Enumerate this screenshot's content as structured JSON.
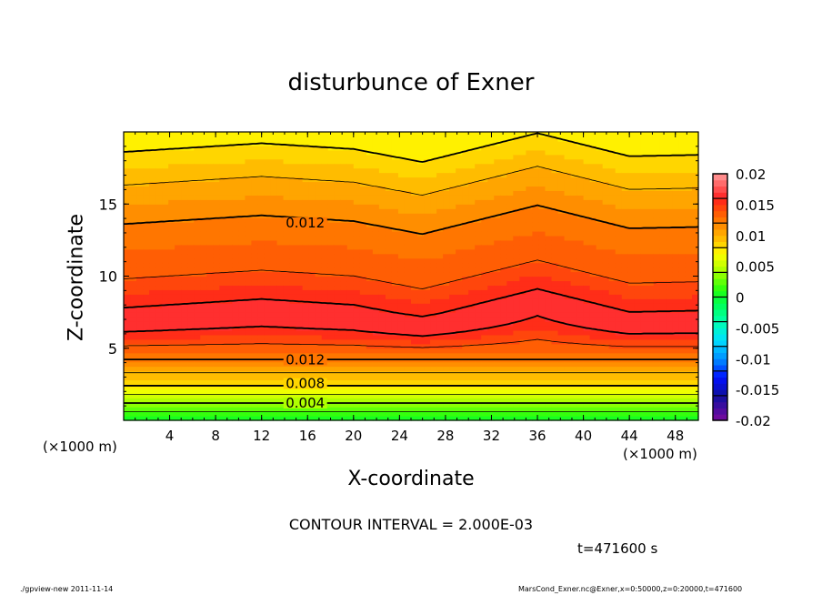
{
  "chart_data": {
    "type": "heatmap",
    "subtype": "filled-contour",
    "title": "disturbunce of Exner",
    "xlabel": "X-coordinate",
    "ylabel": "Z-coordinate",
    "x_unit_left": "(×1000 m)",
    "x_unit_right": "(×1000 m)",
    "xlim": [
      0,
      50
    ],
    "ylim": [
      0,
      20
    ],
    "xticks": [
      4,
      8,
      12,
      16,
      20,
      24,
      28,
      32,
      36,
      40,
      44,
      48
    ],
    "yticks": [
      5,
      10,
      15
    ],
    "contour_interval_text": "CONTOUR INTERVAL = 2.000E-03",
    "contour_interval": 0.002,
    "contour_labels": [
      {
        "text": "0.012",
        "x": 15.8,
        "z": 13.7
      },
      {
        "text": "0.012",
        "x": 15.8,
        "z": 4.2
      },
      {
        "text": "0.008",
        "x": 15.8,
        "z": 2.55
      },
      {
        "text": "0.004",
        "x": 15.8,
        "z": 1.2
      }
    ],
    "vertical_profile": [
      [
        0,
        0.0
      ],
      [
        1.2,
        0.004
      ],
      [
        2.4,
        0.008
      ],
      [
        3.3,
        0.01
      ],
      [
        4.2,
        0.012
      ],
      [
        5.2,
        0.014
      ],
      [
        6.5,
        0.0165
      ],
      [
        8,
        0.016
      ],
      [
        10,
        0.014
      ],
      [
        12,
        0.013
      ],
      [
        13.8,
        0.012
      ],
      [
        16.5,
        0.01
      ],
      [
        18.8,
        0.008
      ],
      [
        20,
        0.0075
      ]
    ],
    "upper_shift_by_x": [
      [
        0,
        -0.2
      ],
      [
        12,
        0.4
      ],
      [
        20,
        0.0
      ],
      [
        26,
        -0.9
      ],
      [
        36,
        1.1
      ],
      [
        44,
        -0.5
      ],
      [
        50,
        -0.4
      ]
    ],
    "colorbar": {
      "min": -0.02,
      "max": 0.02,
      "step": 0.001,
      "labels": [
        "0.02",
        "0.015",
        "0.01",
        "0.005",
        "0",
        "-0.005",
        "-0.01",
        "-0.015",
        "-0.02"
      ],
      "stops": [
        [
          -0.02,
          "#7a0a9e"
        ],
        [
          -0.016,
          "#1010a0"
        ],
        [
          -0.013,
          "#0010ff"
        ],
        [
          -0.01,
          "#0090ff"
        ],
        [
          -0.007,
          "#00e0ff"
        ],
        [
          -0.004,
          "#00ffb0"
        ],
        [
          -0.001,
          "#00ff50"
        ],
        [
          0.001,
          "#20ff10"
        ],
        [
          0.004,
          "#a0ff00"
        ],
        [
          0.007,
          "#ffff00"
        ],
        [
          0.009,
          "#ffc800"
        ],
        [
          0.011,
          "#ff9a00"
        ],
        [
          0.013,
          "#ff6a00"
        ],
        [
          0.015,
          "#ff3a10"
        ],
        [
          0.016,
          "#ff2020"
        ],
        [
          0.02,
          "#ff9a9a"
        ]
      ]
    },
    "time_label": "t=471600 s"
  },
  "footer": {
    "left": "./gpview-new  2011-11-14",
    "right": "MarsCond_Exner.nc@Exner,x=0:50000,z=0:20000,t=471600"
  }
}
